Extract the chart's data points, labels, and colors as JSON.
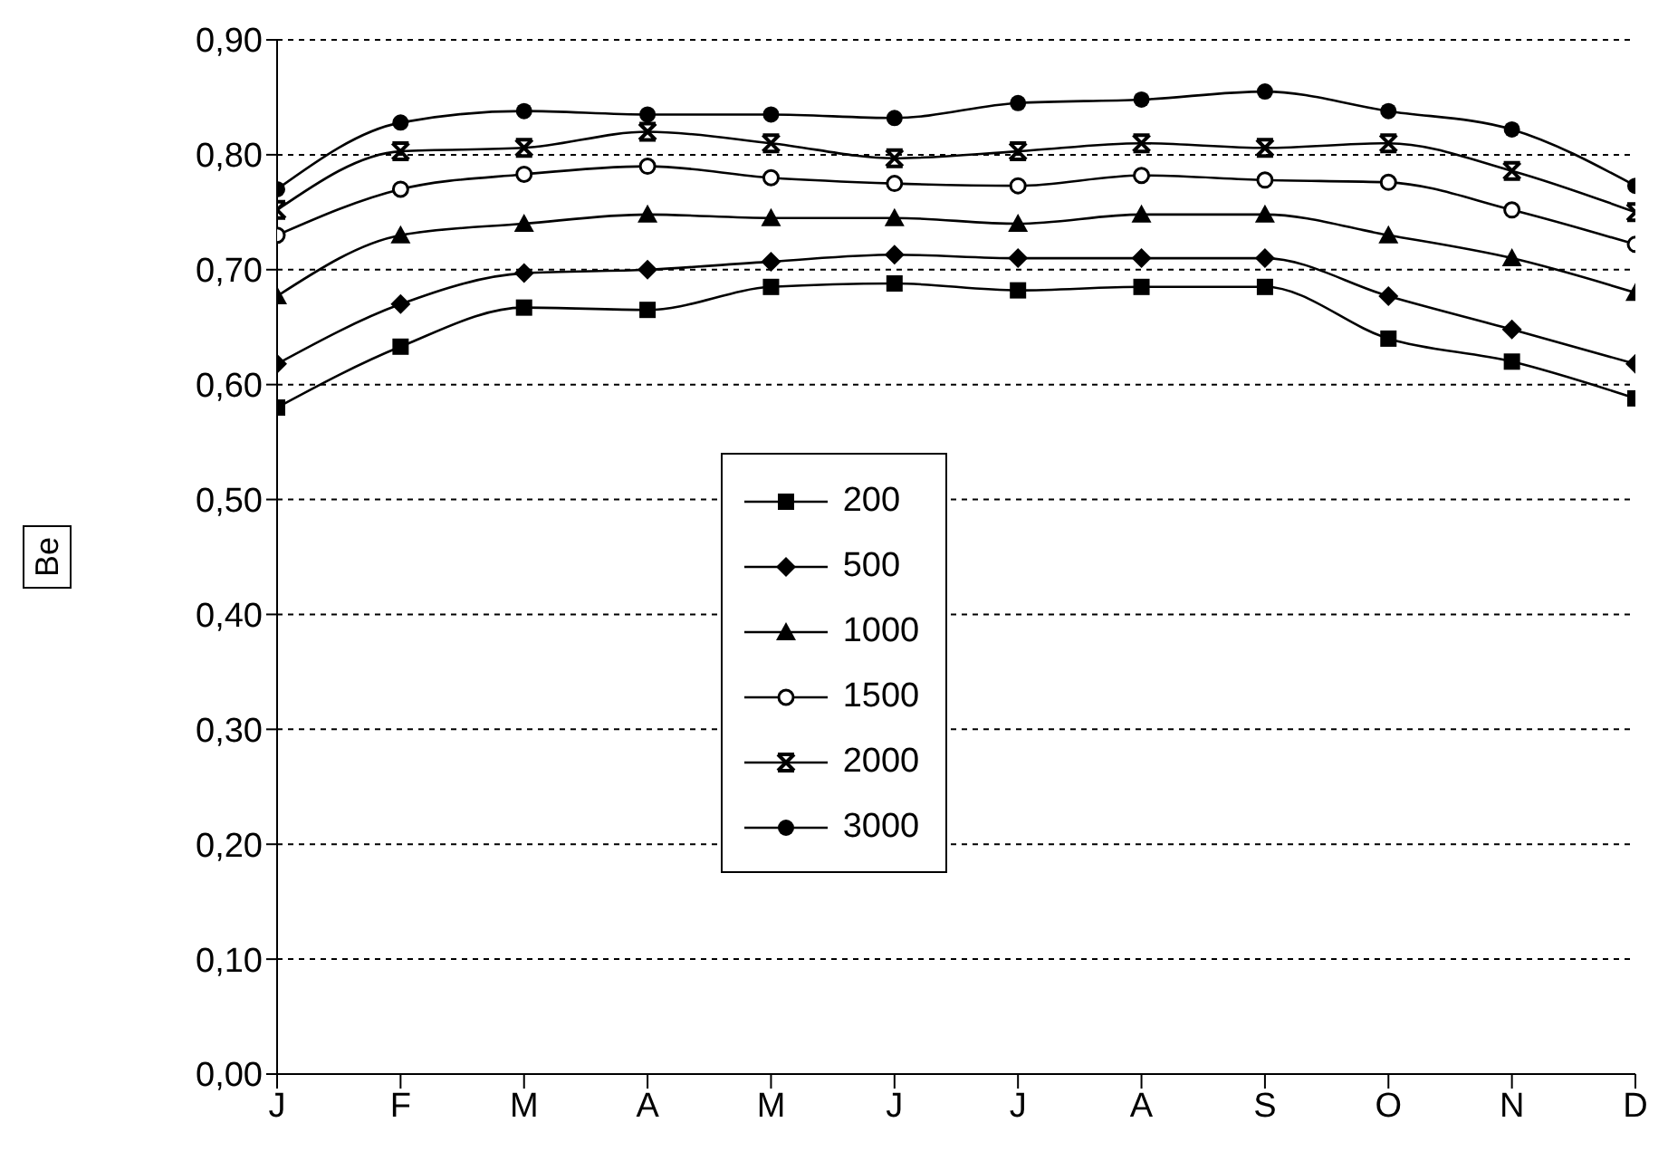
{
  "chart_data": {
    "type": "line",
    "ylabel": "Be",
    "categories": [
      "J",
      "F",
      "M",
      "A",
      "M",
      "J",
      "J",
      "A",
      "S",
      "O",
      "N",
      "D"
    ],
    "ylim": [
      0,
      0.9
    ],
    "yticks": [
      {
        "value": 0,
        "label": "0,00"
      },
      {
        "value": 0.1,
        "label": "0,10"
      },
      {
        "value": 0.2,
        "label": "0,20"
      },
      {
        "value": 0.3,
        "label": "0,30"
      },
      {
        "value": 0.4,
        "label": "0,40"
      },
      {
        "value": 0.5,
        "label": "0,50"
      },
      {
        "value": 0.6,
        "label": "0,60"
      },
      {
        "value": 0.7,
        "label": "0,70"
      },
      {
        "value": 0.8,
        "label": "0,80"
      },
      {
        "value": 0.9,
        "label": "0,90"
      }
    ],
    "grid": "y",
    "legend": "center",
    "line_style": "solid",
    "series": [
      {
        "name": "200",
        "color": "#000000",
        "marker": "square",
        "values": [
          0.58,
          0.633,
          0.667,
          0.665,
          0.685,
          0.688,
          0.682,
          0.685,
          0.685,
          0.64,
          0.62,
          0.588
        ]
      },
      {
        "name": "500",
        "color": "#000000",
        "marker": "diamond",
        "values": [
          0.618,
          0.67,
          0.697,
          0.7,
          0.707,
          0.713,
          0.71,
          0.71,
          0.71,
          0.677,
          0.648,
          0.618
        ]
      },
      {
        "name": "1000",
        "color": "#000000",
        "marker": "triangle",
        "values": [
          0.677,
          0.73,
          0.74,
          0.748,
          0.745,
          0.745,
          0.74,
          0.748,
          0.748,
          0.73,
          0.71,
          0.68
        ]
      },
      {
        "name": "1500",
        "color": "#000000",
        "marker": "open-circle",
        "values": [
          0.73,
          0.77,
          0.783,
          0.79,
          0.78,
          0.775,
          0.773,
          0.782,
          0.778,
          0.776,
          0.752,
          0.722
        ]
      },
      {
        "name": "2000",
        "color": "#000000",
        "marker": "cross",
        "values": [
          0.752,
          0.803,
          0.806,
          0.82,
          0.81,
          0.797,
          0.803,
          0.81,
          0.806,
          0.81,
          0.786,
          0.75
        ]
      },
      {
        "name": "3000",
        "color": "#000000",
        "marker": "circle",
        "values": [
          0.77,
          0.828,
          0.838,
          0.835,
          0.835,
          0.832,
          0.845,
          0.848,
          0.855,
          0.838,
          0.822,
          0.773
        ]
      }
    ]
  }
}
